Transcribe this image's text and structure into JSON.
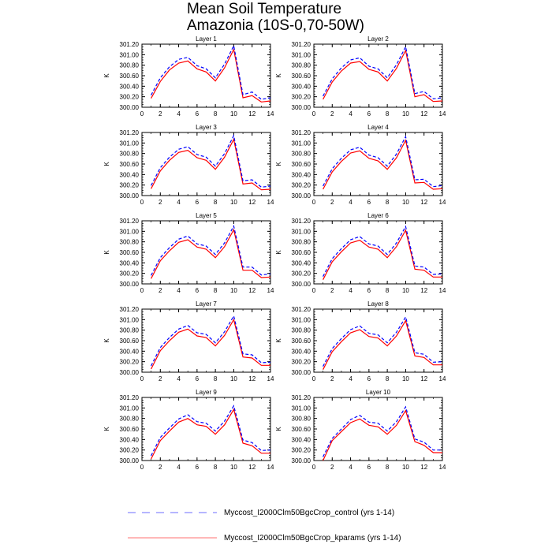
{
  "chart_data": {
    "type": "line",
    "title": [
      "Mean Soil Temperature",
      "Amazonia (10S-0,70-50W)"
    ],
    "ylabel": "K",
    "xlabel": "",
    "xlim": [
      0,
      14
    ],
    "ylim": [
      300.0,
      301.2
    ],
    "x_ticks": [
      "0",
      "2",
      "4",
      "6",
      "8",
      "10",
      "12",
      "14"
    ],
    "x_tick_values": [
      0,
      2,
      4,
      6,
      8,
      10,
      12,
      14
    ],
    "y_ticks": [
      "300.00",
      "300.20",
      "300.40",
      "300.60",
      "300.80",
      "301.00",
      "301.20"
    ],
    "y_tick_values": [
      300.0,
      300.2,
      300.4,
      300.6,
      300.8,
      301.0,
      301.2
    ],
    "x": [
      1,
      2,
      3,
      4,
      5,
      6,
      7,
      8,
      9,
      10,
      11,
      12,
      13,
      14
    ],
    "legend": {
      "placement": "bottom",
      "entries": [
        {
          "name": "Myccost_I2000Clm50BgcCrop_control (yrs 1-14)",
          "color": "#0000ff",
          "dash": "dashed"
        },
        {
          "name": "Myccost_I2000Clm50BgcCrop_kparams (yrs 1-14)",
          "color": "#ff0000",
          "dash": "solid"
        }
      ]
    },
    "panels": [
      {
        "title": "Layer 1",
        "control": [
          300.23,
          300.56,
          300.77,
          300.91,
          300.95,
          300.79,
          300.73,
          300.56,
          300.82,
          301.17,
          300.24,
          300.29,
          300.15,
          300.18
        ],
        "kparams": [
          300.17,
          300.49,
          300.71,
          300.84,
          300.88,
          300.73,
          300.67,
          300.5,
          300.75,
          301.1,
          300.18,
          300.22,
          300.1,
          300.12
        ]
      },
      {
        "title": "Layer 2",
        "control": [
          300.21,
          300.54,
          300.75,
          300.9,
          300.94,
          300.78,
          300.73,
          300.56,
          300.81,
          301.15,
          300.26,
          300.3,
          300.16,
          300.18
        ],
        "kparams": [
          300.15,
          300.48,
          300.69,
          300.84,
          300.87,
          300.72,
          300.67,
          300.5,
          300.74,
          301.08,
          300.2,
          300.24,
          300.11,
          300.12
        ]
      },
      {
        "title": "Layer 3",
        "control": [
          300.19,
          300.53,
          300.73,
          300.88,
          300.93,
          300.78,
          300.73,
          300.56,
          300.8,
          301.14,
          300.28,
          300.3,
          300.16,
          300.18
        ],
        "kparams": [
          300.13,
          300.47,
          300.67,
          300.82,
          300.86,
          300.72,
          300.67,
          300.5,
          300.73,
          301.07,
          300.22,
          300.24,
          300.11,
          300.12
        ]
      },
      {
        "title": "Layer 4",
        "control": [
          300.18,
          300.51,
          300.71,
          300.87,
          300.92,
          300.77,
          300.72,
          300.56,
          300.79,
          301.12,
          300.3,
          300.31,
          300.17,
          300.19
        ],
        "kparams": [
          300.12,
          300.45,
          300.65,
          300.81,
          300.85,
          300.71,
          300.66,
          300.5,
          300.72,
          301.05,
          300.24,
          300.25,
          300.12,
          300.13
        ]
      },
      {
        "title": "Layer 5",
        "control": [
          300.16,
          300.5,
          300.69,
          300.85,
          300.91,
          300.76,
          300.72,
          300.56,
          300.78,
          301.1,
          300.32,
          300.32,
          300.17,
          300.19
        ],
        "kparams": [
          300.1,
          300.44,
          300.63,
          300.79,
          300.84,
          300.7,
          300.66,
          300.5,
          300.71,
          301.03,
          300.26,
          300.26,
          300.12,
          300.13
        ]
      },
      {
        "title": "Layer 6",
        "control": [
          300.14,
          300.48,
          300.67,
          300.84,
          300.9,
          300.76,
          300.72,
          300.56,
          300.78,
          301.09,
          300.34,
          300.32,
          300.18,
          300.19
        ],
        "kparams": [
          300.08,
          300.42,
          300.61,
          300.78,
          300.83,
          300.7,
          300.66,
          300.5,
          300.71,
          301.02,
          300.28,
          300.26,
          300.13,
          300.13
        ]
      },
      {
        "title": "Layer 7",
        "control": [
          300.12,
          300.47,
          300.66,
          300.82,
          300.89,
          300.75,
          300.72,
          300.56,
          300.77,
          301.07,
          300.35,
          300.33,
          300.18,
          300.19
        ],
        "kparams": [
          300.06,
          300.41,
          300.6,
          300.76,
          300.82,
          300.69,
          300.66,
          300.5,
          300.7,
          301.0,
          300.29,
          300.27,
          300.13,
          300.13
        ]
      },
      {
        "title": "Layer 8",
        "control": [
          300.11,
          300.45,
          300.64,
          300.81,
          300.88,
          300.74,
          300.71,
          300.56,
          300.76,
          301.05,
          300.37,
          300.34,
          300.19,
          300.2
        ],
        "kparams": [
          300.05,
          300.39,
          300.58,
          300.75,
          300.81,
          300.68,
          300.65,
          300.5,
          300.69,
          300.98,
          300.31,
          300.28,
          300.14,
          300.14
        ]
      },
      {
        "title": "Layer 9",
        "control": [
          300.09,
          300.44,
          300.62,
          300.79,
          300.87,
          300.74,
          300.71,
          300.56,
          300.75,
          301.04,
          300.39,
          300.34,
          300.19,
          300.2
        ],
        "kparams": [
          300.03,
          300.38,
          300.56,
          300.73,
          300.8,
          300.68,
          300.65,
          300.5,
          300.68,
          300.97,
          300.33,
          300.28,
          300.14,
          300.14
        ]
      },
      {
        "title": "Layer 10",
        "control": [
          300.07,
          300.42,
          300.6,
          300.78,
          300.86,
          300.73,
          300.71,
          300.56,
          300.74,
          301.02,
          300.41,
          300.35,
          300.2,
          300.2
        ],
        "kparams": [
          300.0,
          300.38,
          300.55,
          300.72,
          300.79,
          300.67,
          300.64,
          300.5,
          300.67,
          300.95,
          300.36,
          300.29,
          300.15,
          300.15
        ]
      }
    ]
  }
}
